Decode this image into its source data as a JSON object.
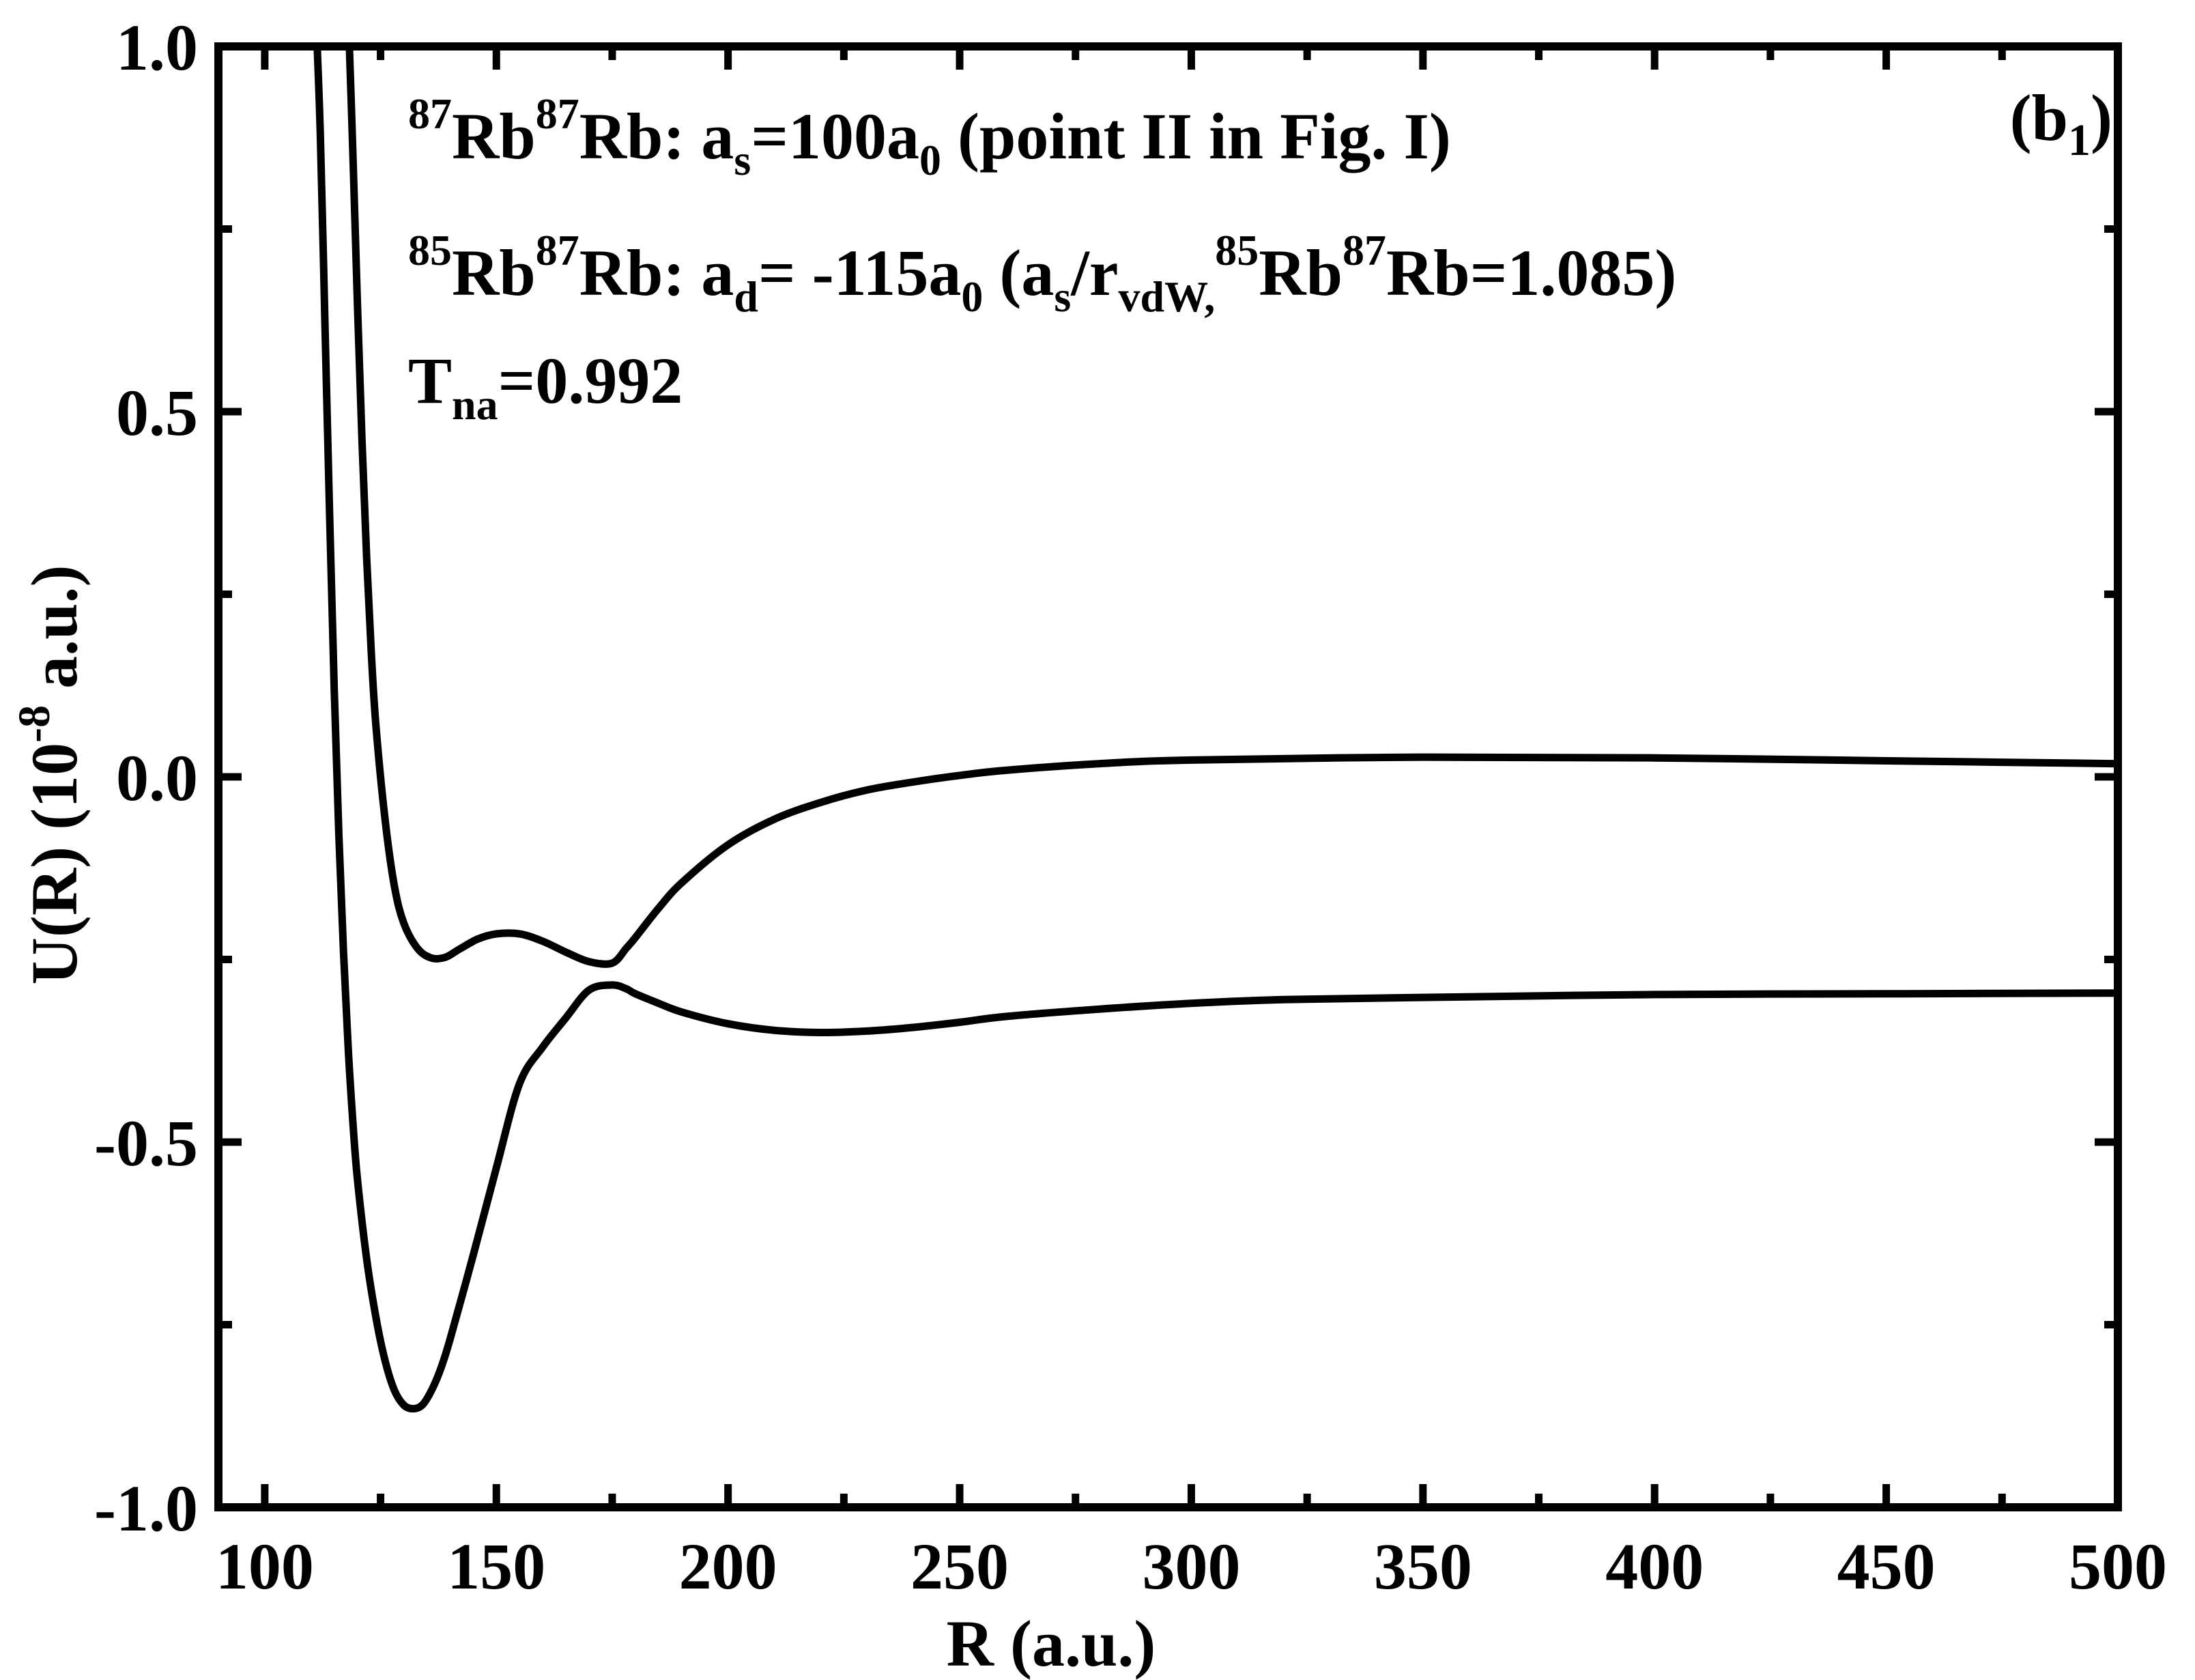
{
  "chart_data": {
    "type": "line",
    "xlabel": "R (a.u.)",
    "ylabel_parts": {
      "base": "U(R) (10",
      "exp": "-8",
      "tail": " a.u.)"
    },
    "xlim": [
      90,
      500
    ],
    "ylim": [
      -1.0,
      1.0
    ],
    "x_ticks": [
      100,
      150,
      200,
      250,
      300,
      350,
      400,
      450,
      500
    ],
    "x_tick_labels": [
      "100",
      "150",
      "200",
      "250",
      "300",
      "350",
      "400",
      "450",
      "500"
    ],
    "y_ticks": [
      -1.0,
      -0.5,
      0.0,
      0.5,
      1.0
    ],
    "y_tick_labels": [
      "-1.0",
      "-0.5",
      "0.0",
      "0.5",
      "1.0"
    ],
    "grid": false,
    "panel_label": {
      "pre": "(b",
      "sub": "1",
      "post": ")"
    },
    "annotations": {
      "line1": {
        "m1": "87",
        "rb1": "Rb",
        "m2": "87",
        "rb2": "Rb: a",
        "sub1": "s",
        "mid": "=100a",
        "sub2": "0",
        "tail": " (point II in Fig. I)"
      },
      "line2": {
        "m1": "85",
        "rb1": "Rb",
        "m2": "87",
        "rb2": "Rb: a",
        "sub1": "d",
        "mid": "= -115a",
        "sub2": "0",
        "p1": "  (a",
        "sub3": "s",
        "p2": "/r",
        "sub4": "vdW,",
        "m3": "85",
        "rb3": "Rb",
        "m4": "87",
        "p3": "Rb",
        "sub5": "",
        "p4": "=1.085)"
      },
      "line3": {
        "t": "T",
        "sub": "na",
        "val": "=0.992"
      }
    },
    "series": [
      {
        "x": [
          111,
          112,
          113,
          114,
          115,
          116,
          117,
          118,
          119,
          120,
          122,
          124,
          126,
          128,
          130,
          132,
          134,
          136,
          138,
          140,
          145,
          150,
          155,
          160,
          165,
          170,
          175,
          178,
          180,
          185,
          190,
          200,
          210,
          220,
          230,
          240,
          250,
          260,
          280,
          300,
          320,
          350,
          400,
          450,
          500
        ],
        "y": [
          1.05,
          0.88,
          0.62,
          0.36,
          0.12,
          -0.08,
          -0.24,
          -0.37,
          -0.47,
          -0.55,
          -0.66,
          -0.74,
          -0.8,
          -0.84,
          -0.86,
          -0.865,
          -0.86,
          -0.84,
          -0.81,
          -0.77,
          -0.655,
          -0.535,
          -0.42,
          -0.37,
          -0.33,
          -0.292,
          -0.285,
          -0.29,
          -0.297,
          -0.31,
          -0.322,
          -0.338,
          -0.347,
          -0.35,
          -0.348,
          -0.343,
          -0.336,
          -0.328,
          -0.318,
          -0.31,
          -0.305,
          -0.302,
          -0.298,
          -0.297,
          -0.296
        ]
      },
      {
        "x": [
          118,
          119,
          120,
          121,
          122,
          123,
          124,
          126,
          128,
          130,
          133,
          136,
          139,
          142,
          146,
          150,
          155,
          160,
          165,
          170,
          175,
          178,
          180,
          185,
          190,
          200,
          210,
          220,
          230,
          240,
          250,
          260,
          280,
          300,
          350,
          400,
          450,
          500
        ],
        "y": [
          1.05,
          0.86,
          0.65,
          0.46,
          0.3,
          0.17,
          0.07,
          -0.06,
          -0.15,
          -0.2,
          -0.235,
          -0.248,
          -0.247,
          -0.236,
          -0.222,
          -0.215,
          -0.215,
          -0.225,
          -0.24,
          -0.253,
          -0.255,
          -0.235,
          -0.22,
          -0.18,
          -0.145,
          -0.093,
          -0.058,
          -0.035,
          -0.018,
          -0.007,
          0.002,
          0.009,
          0.018,
          0.023,
          0.027,
          0.026,
          0.022,
          0.018
        ]
      }
    ]
  }
}
